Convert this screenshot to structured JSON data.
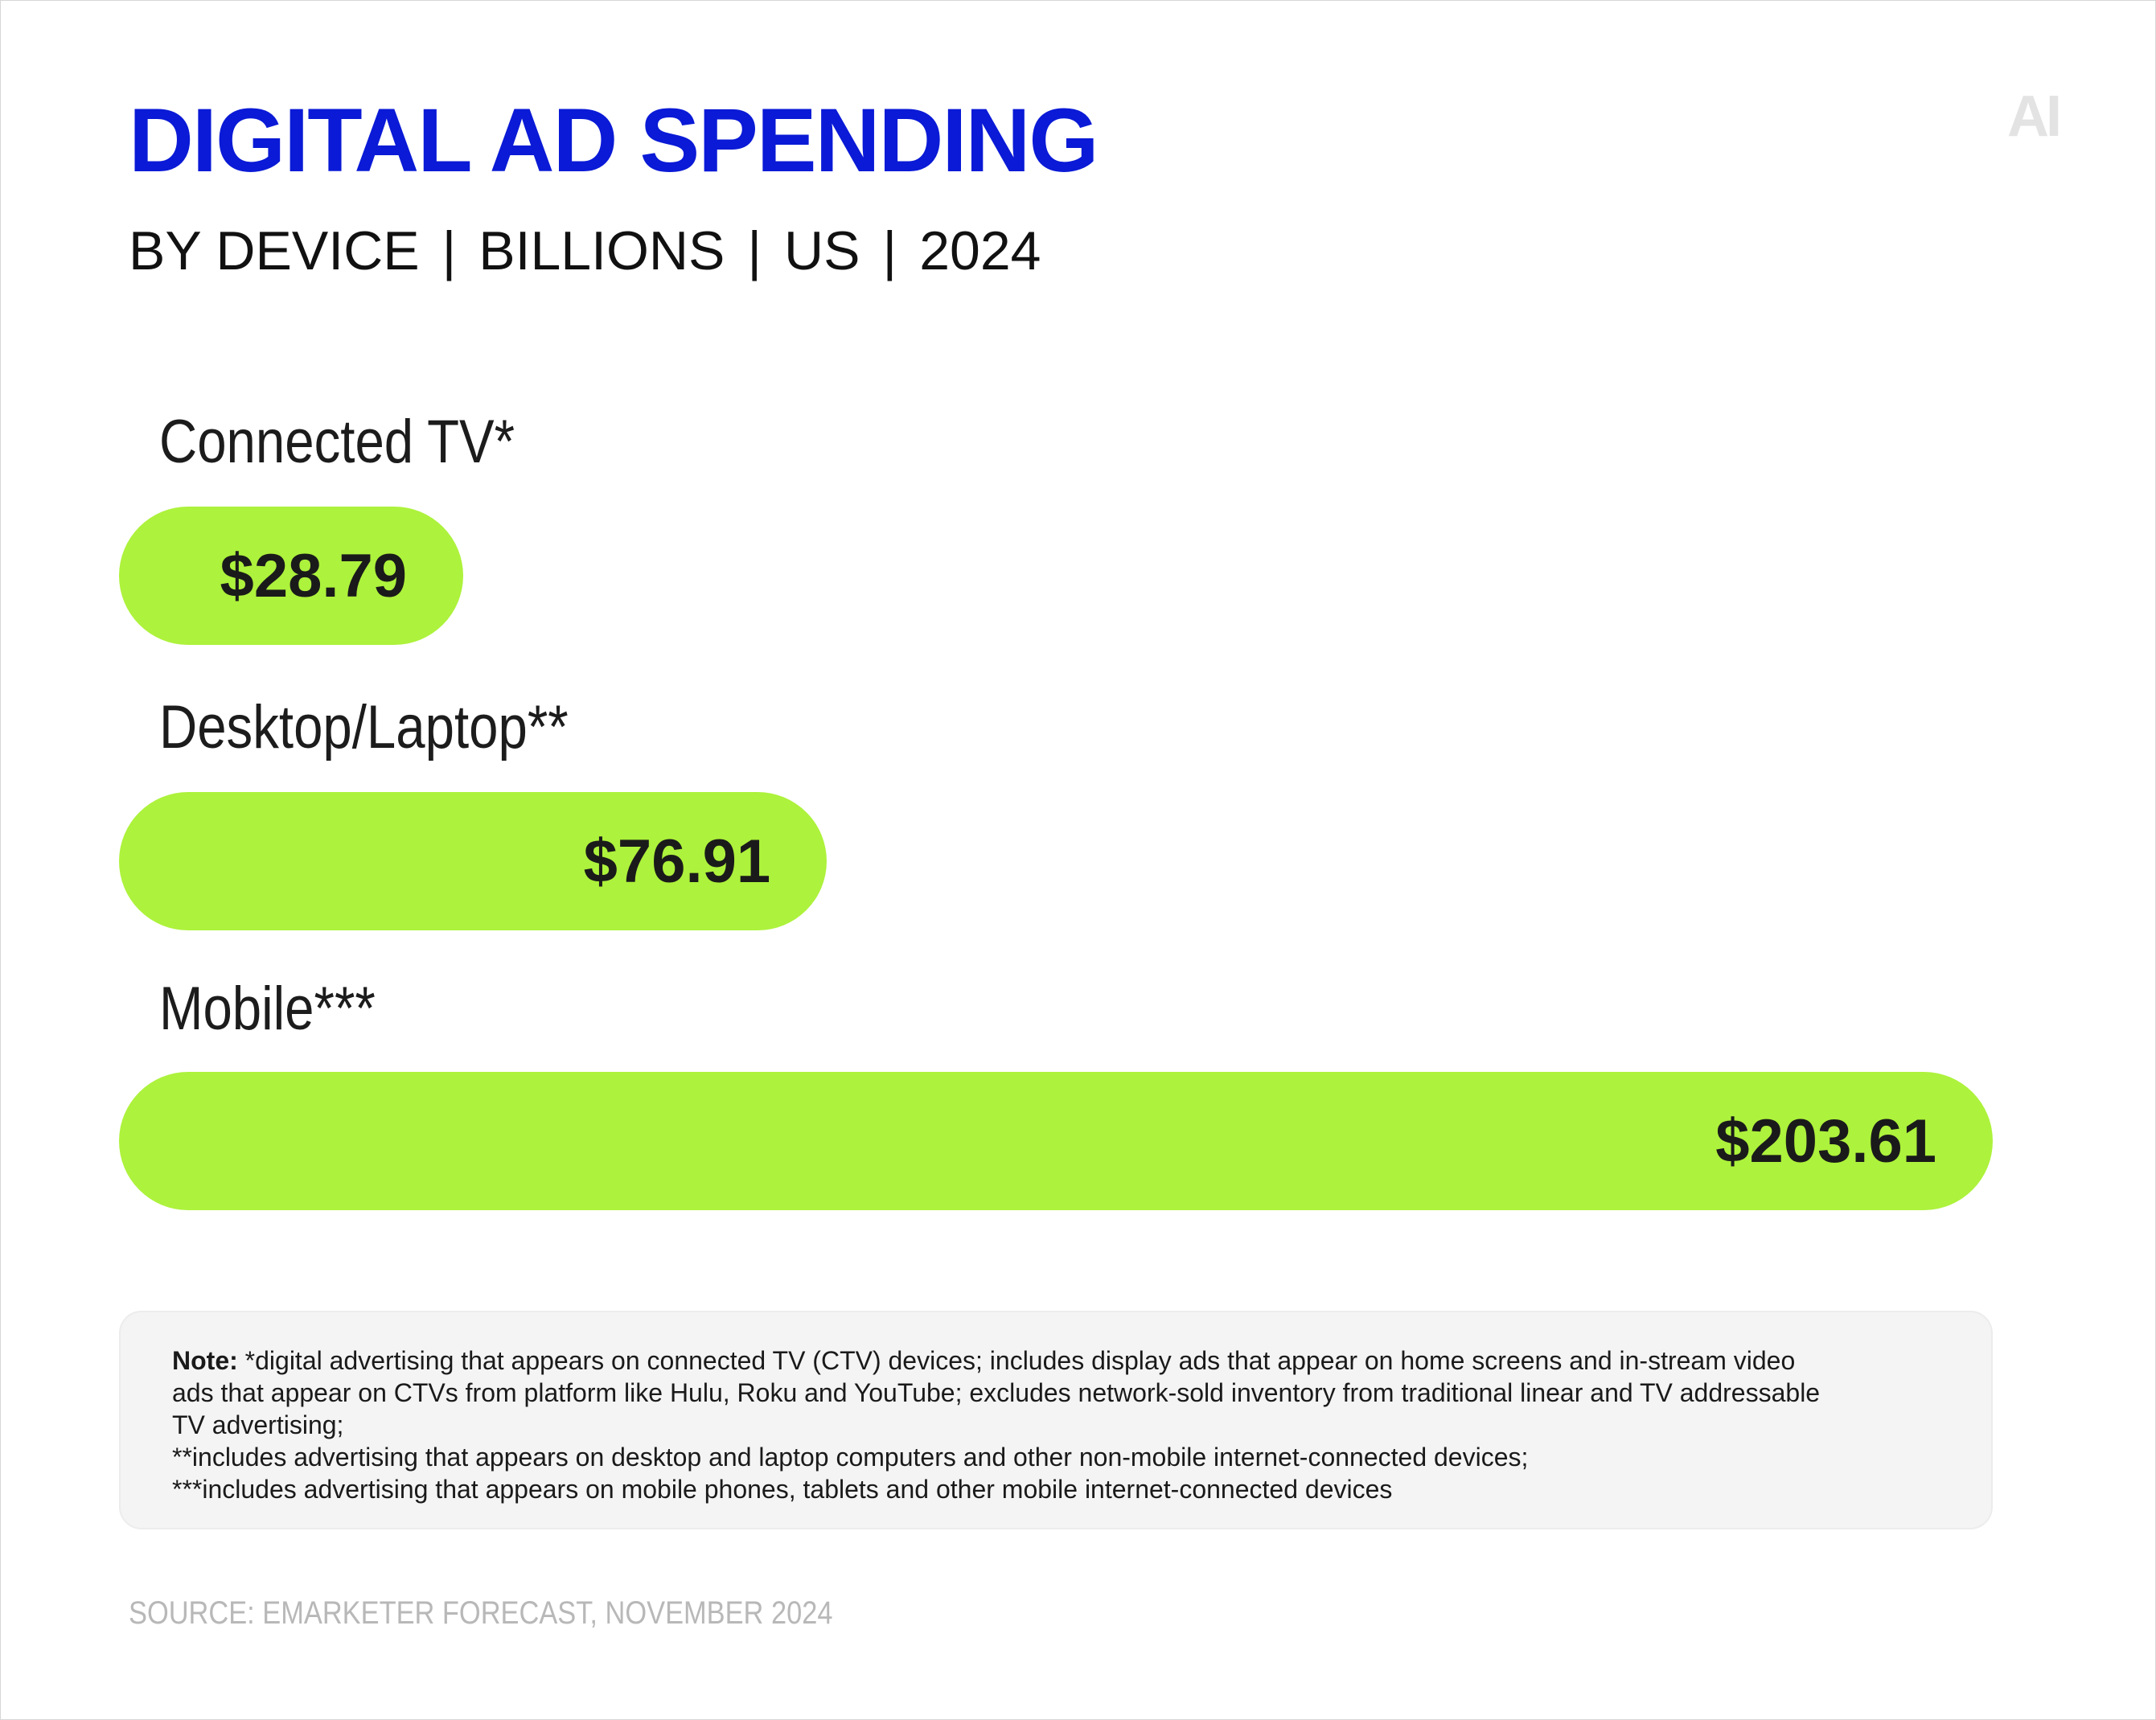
{
  "header": {
    "title": "DIGITAL AD SPENDING",
    "subtitle_parts": [
      "BY DEVICE",
      "BILLIONS",
      "US",
      "2024"
    ],
    "logo_text": "AI"
  },
  "chart_data": {
    "type": "bar",
    "orientation": "horizontal",
    "title": "DIGITAL AD SPENDING",
    "subtitle": "BY DEVICE |BILLIONS | US | 2024",
    "categories": [
      "Connected TV*",
      "Desktop/Laptop**",
      "Mobile***"
    ],
    "values": [
      28.79,
      76.91,
      203.61
    ],
    "value_labels": [
      "$28.79",
      "$76.91",
      "$203.61"
    ],
    "unit": "billions USD",
    "xlim": [
      0,
      203.61
    ],
    "bar_color": "#adf23c"
  },
  "note": {
    "label": "Note:",
    "lines": [
      "*digital advertising that appears on connected TV (CTV) devices; includes display ads that appear on home screens and in-stream video",
      "ads that appear on CTVs from platform like Hulu, Roku and YouTube; excludes network-sold inventory from traditional linear and TV addressable",
      "TV advertising;",
      "**includes advertising that appears on desktop and laptop computers and other non-mobile internet-connected devices;",
      "***includes advertising that appears on mobile phones, tablets and other mobile internet-connected devices"
    ]
  },
  "source": "SOURCE: EMARKETER FORECAST, NOVEMBER 2024",
  "colors": {
    "title": "#0a1ad6",
    "bar": "#adf23c",
    "text": "#1a1a1a",
    "source": "#b8b8b8"
  }
}
